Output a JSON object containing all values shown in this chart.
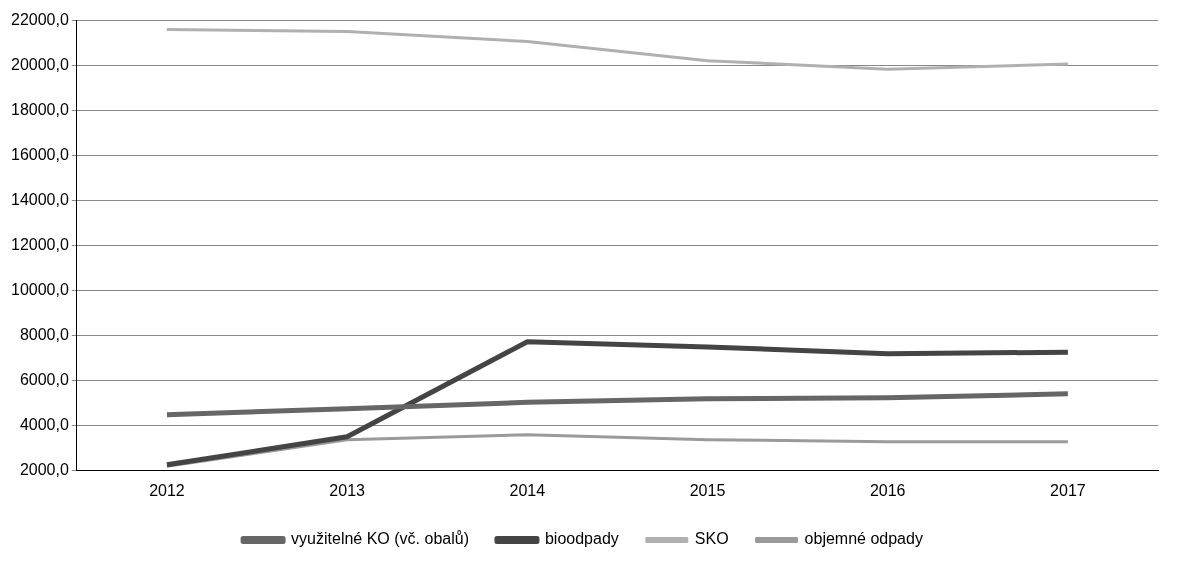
{
  "chart_data": {
    "type": "line",
    "categories": [
      "2012",
      "2013",
      "2014",
      "2015",
      "2016",
      "2017"
    ],
    "series": [
      {
        "name": "využitelné KO (vč. obalů)",
        "color": "#666666",
        "values": [
          4490,
          4760,
          5040,
          5200,
          5240,
          5420
        ]
      },
      {
        "name": "bioodpady",
        "color": "#444444",
        "values": [
          2270,
          3510,
          7730,
          7500,
          7200,
          7270
        ]
      },
      {
        "name": "SKO",
        "color": "#b0b0b0",
        "values": [
          21600,
          21520,
          21070,
          20220,
          19840,
          20070
        ]
      },
      {
        "name": "objemné odpady",
        "color": "#9a9a9a",
        "values": [
          2200,
          3380,
          3600,
          3380,
          3290,
          3290
        ]
      }
    ],
    "ylim": [
      2000,
      22000
    ],
    "yticks": [
      {
        "value": 2000,
        "label": "2000,0"
      },
      {
        "value": 4000,
        "label": "4000,0"
      },
      {
        "value": 6000,
        "label": "6000,0"
      },
      {
        "value": 8000,
        "label": "8000,0"
      },
      {
        "value": 10000,
        "label": "10000,0"
      },
      {
        "value": 12000,
        "label": "12000,0"
      },
      {
        "value": 14000,
        "label": "14000,0"
      },
      {
        "value": 16000,
        "label": "16000,0"
      },
      {
        "value": 18000,
        "label": "18000,0"
      },
      {
        "value": 20000,
        "label": "20000,0"
      },
      {
        "value": 22000,
        "label": "22000,0"
      }
    ],
    "grid": "y",
    "legend": "bottom",
    "marker": "none",
    "line_style": "solid"
  }
}
